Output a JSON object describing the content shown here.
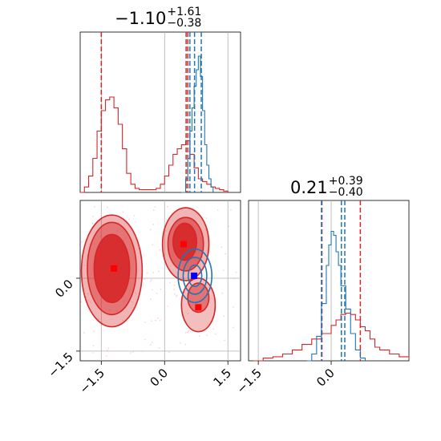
{
  "chart_data": {
    "type": "corner",
    "parameters": [
      {
        "title": {
          "value": "−1.10",
          "plus": "+1.61",
          "minus": "−0.38"
        },
        "ticks": [
          "−1.5",
          "0.0",
          "1.5"
        ],
        "range": [
          -2.0,
          1.8
        ]
      },
      {
        "title": {
          "value": "0.21",
          "plus": "+0.39",
          "minus": "−0.40"
        },
        "ticks": [
          "−1.5",
          "0.0"
        ],
        "range": [
          -1.7,
          1.6
        ]
      }
    ],
    "y_ticks": [
      "0.0",
      "−1.5"
    ],
    "y_range": [
      -1.7,
      1.6
    ],
    "colors": {
      "red": "#d62728",
      "blue": "#1f77b4",
      "grid": "#b0b0b0"
    },
    "series": [
      {
        "color": "#d62728",
        "quantile_lines_1": [
          -1.5,
          0.51,
          0.55
        ],
        "quantile_lines_2": [
          -0.19,
          0.6
        ],
        "hist_1": [
          [
            -2.0,
            0.0
          ],
          [
            -1.9,
            0.04
          ],
          [
            -1.8,
            0.12
          ],
          [
            -1.7,
            0.25
          ],
          [
            -1.6,
            0.45
          ],
          [
            -1.5,
            0.6
          ],
          [
            -1.4,
            0.68
          ],
          [
            -1.3,
            0.7
          ],
          [
            -1.2,
            0.62
          ],
          [
            -1.1,
            0.5
          ],
          [
            -1.0,
            0.32
          ],
          [
            -0.9,
            0.14
          ],
          [
            -0.8,
            0.06
          ],
          [
            -0.7,
            0.03
          ],
          [
            -0.6,
            0.02
          ],
          [
            -0.5,
            0.02
          ],
          [
            -0.4,
            0.02
          ],
          [
            -0.3,
            0.02
          ],
          [
            -0.2,
            0.03
          ],
          [
            -0.1,
            0.06
          ],
          [
            0.0,
            0.12
          ],
          [
            0.1,
            0.2
          ],
          [
            0.2,
            0.28
          ],
          [
            0.3,
            0.32
          ],
          [
            0.4,
            0.35
          ],
          [
            0.5,
            0.38
          ],
          [
            0.6,
            0.28
          ],
          [
            0.7,
            0.18
          ],
          [
            0.8,
            0.1
          ],
          [
            0.9,
            0.08
          ],
          [
            1.0,
            0.06
          ],
          [
            1.1,
            0.04
          ],
          [
            1.2,
            0.03
          ],
          [
            1.3,
            0.02
          ],
          [
            1.4,
            0.01
          ],
          [
            1.5,
            0.0
          ]
        ],
        "hist_2": [
          [
            -1.6,
            0.0
          ],
          [
            -1.4,
            0.02
          ],
          [
            -1.2,
            0.03
          ],
          [
            -1.0,
            0.05
          ],
          [
            -0.8,
            0.08
          ],
          [
            -0.6,
            0.12
          ],
          [
            -0.4,
            0.16
          ],
          [
            -0.2,
            0.2
          ],
          [
            0.0,
            0.26
          ],
          [
            0.1,
            0.3
          ],
          [
            0.2,
            0.34
          ],
          [
            0.3,
            0.35
          ],
          [
            0.4,
            0.34
          ],
          [
            0.5,
            0.3
          ],
          [
            0.6,
            0.25
          ],
          [
            0.7,
            0.22
          ],
          [
            0.8,
            0.16
          ],
          [
            0.9,
            0.1
          ],
          [
            1.0,
            0.08
          ],
          [
            1.2,
            0.05
          ],
          [
            1.4,
            0.03
          ],
          [
            1.6,
            0.01
          ]
        ],
        "markers": [
          [
            -1.2,
            0.2
          ],
          [
            0.45,
            0.7
          ],
          [
            0.8,
            -0.6
          ]
        ]
      },
      {
        "color": "#1f77b4",
        "quantile_lines_1": [
          0.6,
          0.71,
          0.87
        ],
        "quantile_lines_2": [
          -0.2,
          0.21,
          0.28
        ],
        "hist_1": [
          [
            0.4,
            0.0
          ],
          [
            0.5,
            0.1
          ],
          [
            0.55,
            0.25
          ],
          [
            0.6,
            0.45
          ],
          [
            0.65,
            0.62
          ],
          [
            0.7,
            0.78
          ],
          [
            0.75,
            0.9
          ],
          [
            0.8,
            1.0
          ],
          [
            0.85,
            0.85
          ],
          [
            0.9,
            0.6
          ],
          [
            0.95,
            0.35
          ],
          [
            1.0,
            0.2
          ],
          [
            1.05,
            0.1
          ],
          [
            1.1,
            0.04
          ],
          [
            1.15,
            0.0
          ]
        ],
        "hist_2": [
          [
            -0.5,
            0.0
          ],
          [
            -0.4,
            0.05
          ],
          [
            -0.3,
            0.18
          ],
          [
            -0.2,
            0.42
          ],
          [
            -0.1,
            0.7
          ],
          [
            -0.05,
            0.85
          ],
          [
            0.0,
            0.95
          ],
          [
            0.05,
            0.92
          ],
          [
            0.1,
            0.8
          ],
          [
            0.15,
            0.7
          ],
          [
            0.2,
            0.55
          ],
          [
            0.3,
            0.38
          ],
          [
            0.4,
            0.2
          ],
          [
            0.5,
            0.08
          ],
          [
            0.6,
            0.02
          ],
          [
            0.7,
            0.0
          ]
        ],
        "markers": [
          [
            0.7,
            0.05
          ]
        ]
      }
    ]
  }
}
